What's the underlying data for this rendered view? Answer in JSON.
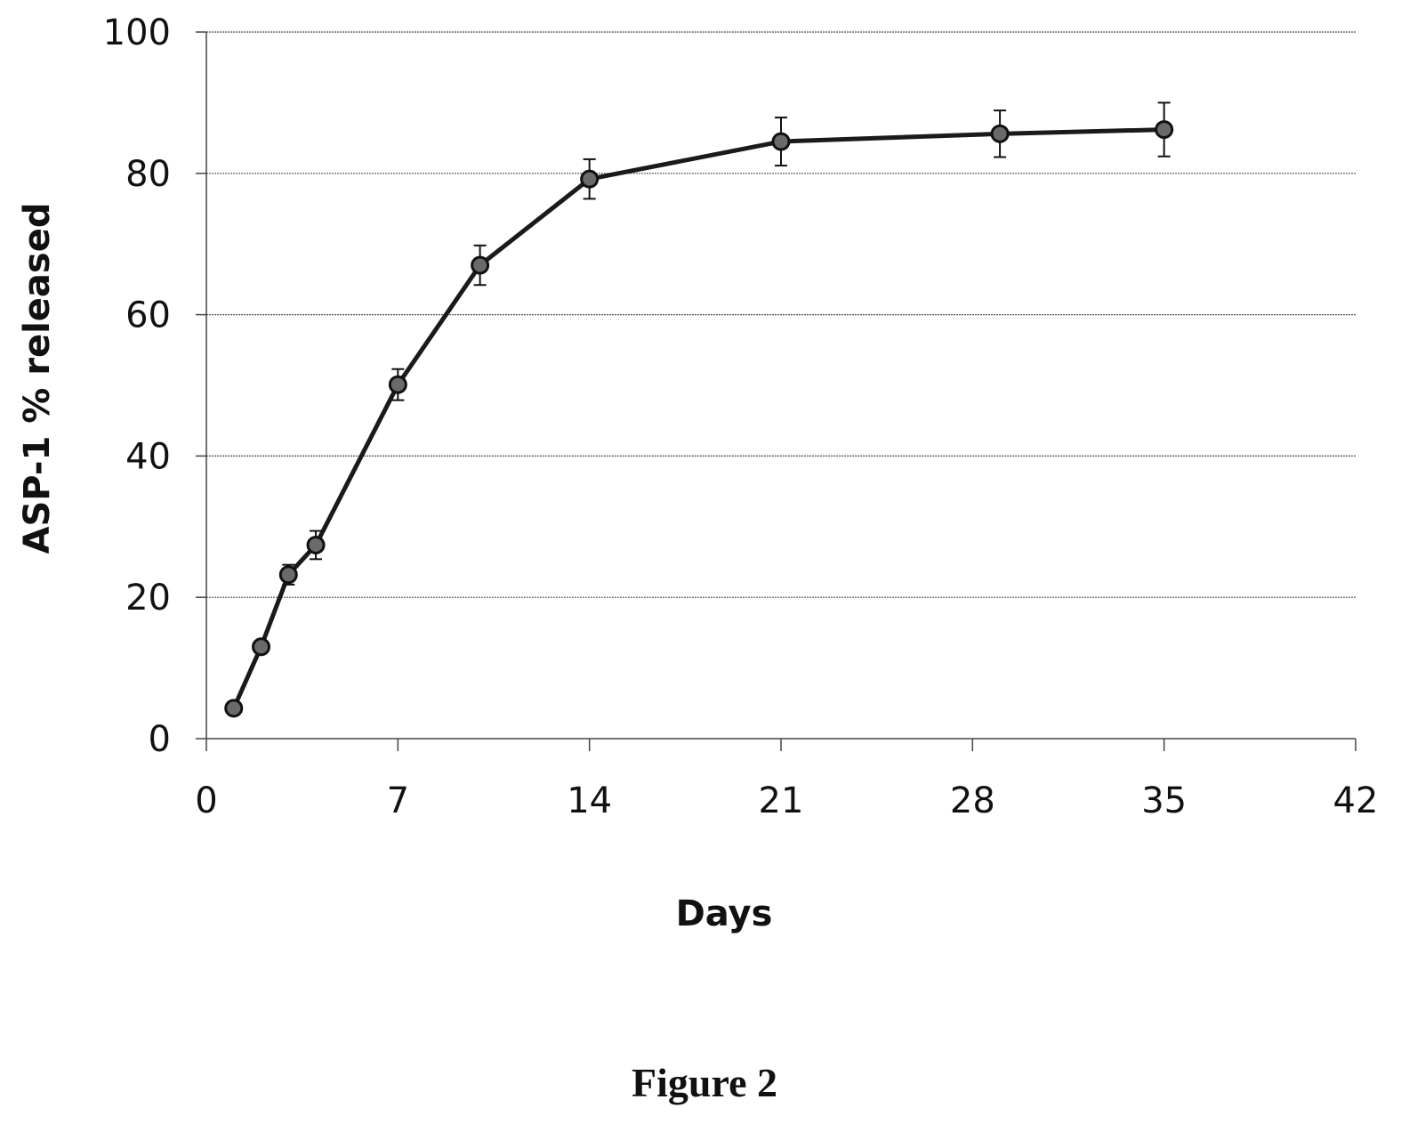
{
  "chart_data": {
    "type": "line",
    "xlabel": "Days",
    "ylabel": "ASP-1 % released",
    "xlim": [
      0,
      42
    ],
    "ylim": [
      0,
      100
    ],
    "xticks": [
      "0",
      "7",
      "14",
      "21",
      "28",
      "35",
      "42"
    ],
    "yticks": [
      "0",
      "20",
      "40",
      "60",
      "80",
      "100"
    ],
    "grid": "horizontal",
    "series": [
      {
        "x": [
          1,
          2,
          3,
          4,
          7,
          10,
          14,
          21,
          29,
          35
        ],
        "y": [
          4.3,
          13,
          23.2,
          27.4,
          50.1,
          67,
          79.2,
          84.5,
          85.6,
          86.2
        ],
        "error": [
          0.5,
          0.8,
          1.4,
          2.0,
          2.2,
          2.8,
          2.8,
          3.4,
          3.3,
          3.8
        ],
        "color": "#1a1a1a",
        "marker_color": "#6a6a6a"
      }
    ]
  },
  "caption": "Figure 2"
}
